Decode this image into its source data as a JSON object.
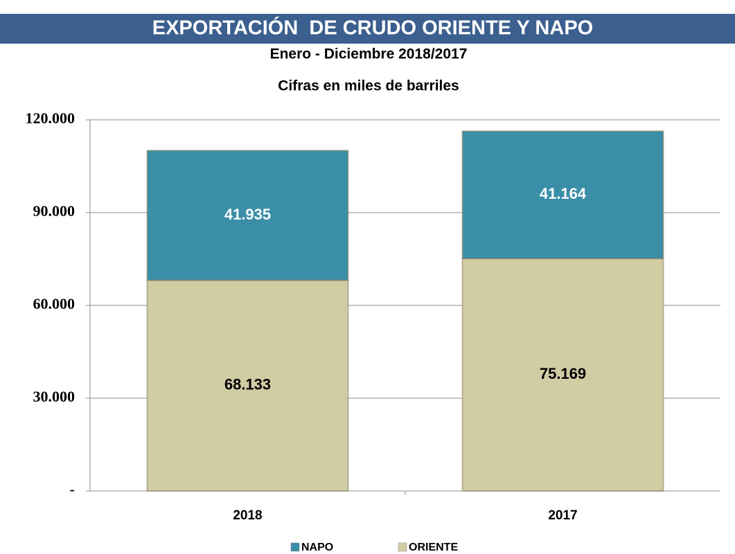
{
  "chart_data": {
    "type": "stacked_bar",
    "title": "EXPORTACIÓN  DE CRUDO ORIENTE Y NAPO",
    "subtitle": "Enero - Diciembre 2018/2017",
    "subtitle2": "Cifras en miles de barriles",
    "categories": [
      "2018",
      "2017"
    ],
    "series": [
      {
        "name": "NAPO",
        "color": "#3a8ea8",
        "label_color": "#ffffff",
        "values": [
          41935,
          41164
        ],
        "value_labels": [
          "41.935",
          "41.164"
        ]
      },
      {
        "name": "ORIENTE",
        "color": "#d2cca5",
        "label_color": "#000000",
        "values": [
          68133,
          75169
        ],
        "value_labels": [
          "68.133",
          "75.169"
        ]
      }
    ],
    "ylim": [
      0,
      120000
    ],
    "yticks": [
      {
        "value": 0,
        "label": "-"
      },
      {
        "value": 30000,
        "label": "30.000"
      },
      {
        "value": 60000,
        "label": "60.000"
      },
      {
        "value": 90000,
        "label": "90.000"
      },
      {
        "value": 120000,
        "label": "120.000"
      }
    ],
    "grid": true,
    "legend": "bottom"
  }
}
